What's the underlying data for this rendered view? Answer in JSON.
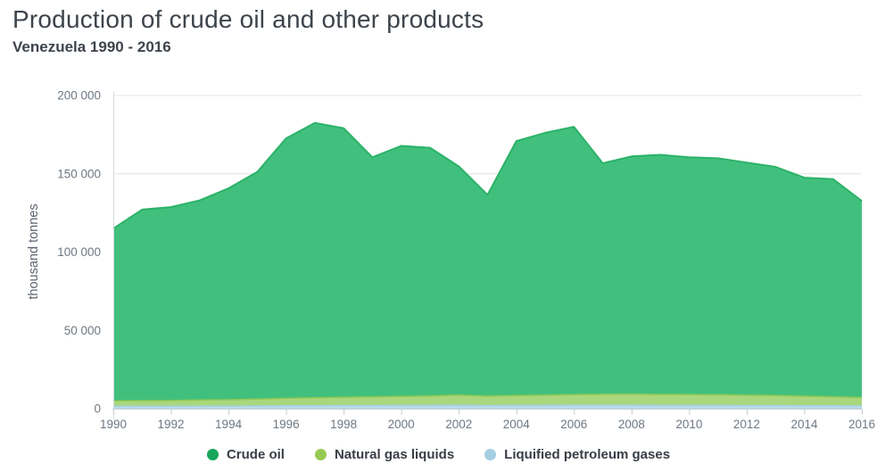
{
  "header": {
    "title": "Production of crude oil and other products",
    "subtitle": "Venezuela 1990 - 2016"
  },
  "chart_data": {
    "type": "area",
    "stacked": true,
    "title": "Production of crude oil and other products",
    "subtitle": "Venezuela 1990 - 2016",
    "xlabel": "",
    "ylabel": "thousand tonnes",
    "ylim": [
      0,
      200000
    ],
    "grid": "horizontal",
    "legend_position": "bottom",
    "x": [
      1990,
      1991,
      1992,
      1993,
      1994,
      1995,
      1996,
      1997,
      1998,
      1999,
      2000,
      2001,
      2002,
      2003,
      2004,
      2005,
      2006,
      2007,
      2008,
      2009,
      2010,
      2011,
      2012,
      2013,
      2014,
      2015,
      2016
    ],
    "x_tick_years": [
      1990,
      1992,
      1994,
      1996,
      1998,
      2000,
      2002,
      2004,
      2006,
      2008,
      2010,
      2012,
      2014,
      2016
    ],
    "y_ticks": [
      0,
      50000,
      100000,
      150000,
      200000
    ],
    "y_tick_labels": [
      "0",
      "50 000",
      "100 000",
      "150 000",
      "200 000"
    ],
    "stack_order_bottom_to_top": [
      "Liquified petroleum gases",
      "Natural gas liquids",
      "Crude oil"
    ],
    "series": [
      {
        "name": "Crude oil",
        "color": "#17a65b",
        "fill": "#41c07d",
        "stroke": "#2bb268",
        "values": [
          110000,
          122000,
          123500,
          127500,
          135000,
          145000,
          166000,
          175500,
          171800,
          153000,
          160000,
          158500,
          146000,
          128500,
          162500,
          167500,
          171000,
          147500,
          151800,
          153000,
          151500,
          151000,
          148500,
          146000,
          139500,
          139000,
          125500
        ]
      },
      {
        "name": "Natural gas liquids",
        "color": "#97ca52",
        "fill": "#a9d77d",
        "stroke": "#8fc854",
        "values": [
          3500,
          3600,
          3700,
          3900,
          4100,
          4400,
          4800,
          5100,
          5300,
          5500,
          5700,
          6000,
          6500,
          6000,
          6300,
          6500,
          6800,
          7000,
          7100,
          7000,
          6900,
          6800,
          6600,
          6400,
          6100,
          5800,
          5400
        ]
      },
      {
        "name": "Liquified petroleum gases",
        "color": "#a5cee2",
        "fill": "#b8dbe9",
        "stroke": "#a6d0e2",
        "values": [
          1500,
          1500,
          1500,
          1600,
          1600,
          1700,
          1800,
          1900,
          2000,
          2000,
          2100,
          2100,
          2200,
          2000,
          2100,
          2100,
          2200,
          2200,
          2200,
          2100,
          2100,
          2100,
          2000,
          2000,
          1900,
          1800,
          1700
        ]
      }
    ]
  }
}
